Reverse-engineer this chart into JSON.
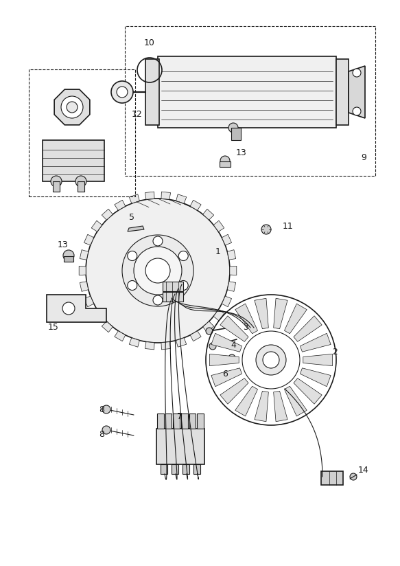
{
  "bg_color": "#ffffff",
  "line_color": "#1a1a1a",
  "fig_width": 5.83,
  "fig_height": 8.24,
  "dpi": 100
}
